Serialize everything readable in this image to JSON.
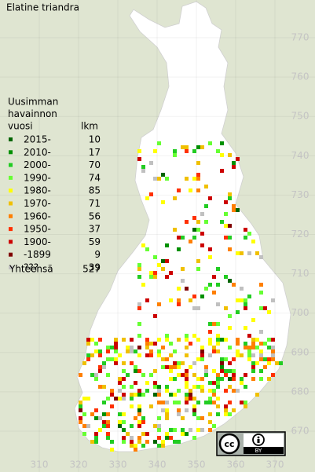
{
  "title": "Elatine triandra",
  "legend": {
    "heading": [
      "Uusimman",
      "havainnon",
      "vuosi"
    ],
    "count_heading": "lkm",
    "items": [
      {
        "label": "2015-",
        "count": 10,
        "color": "#006400"
      },
      {
        "label": "2010-",
        "count": 17,
        "color": "#009000"
      },
      {
        "label": "2000-",
        "count": 70,
        "color": "#22cc22"
      },
      {
        "label": "1990-",
        "count": 74,
        "color": "#66ff33"
      },
      {
        "label": "1980-",
        "count": 85,
        "color": "#ffff00"
      },
      {
        "label": "1970-",
        "count": 71,
        "color": "#f0c000"
      },
      {
        "label": "1960-",
        "count": 56,
        "color": "#ff7f00"
      },
      {
        "label": "1950-",
        "count": 37,
        "color": "#ff3000"
      },
      {
        "label": "1900-",
        "count": 59,
        "color": "#cc0000"
      },
      {
        "label": "-1899",
        "count": 9,
        "color": "#800000"
      },
      {
        "label": "???",
        "count": 39,
        "color": "#c0c0c0"
      }
    ],
    "total_label": "Yhteensä",
    "total": 527
  },
  "northing_labels": [
    770,
    760,
    750,
    740,
    730,
    720,
    710,
    700,
    690,
    680,
    670
  ],
  "easting_labels": [
    310,
    320,
    330,
    340,
    350,
    360,
    370
  ],
  "license": {
    "logo": "cc",
    "label": "BY"
  }
}
